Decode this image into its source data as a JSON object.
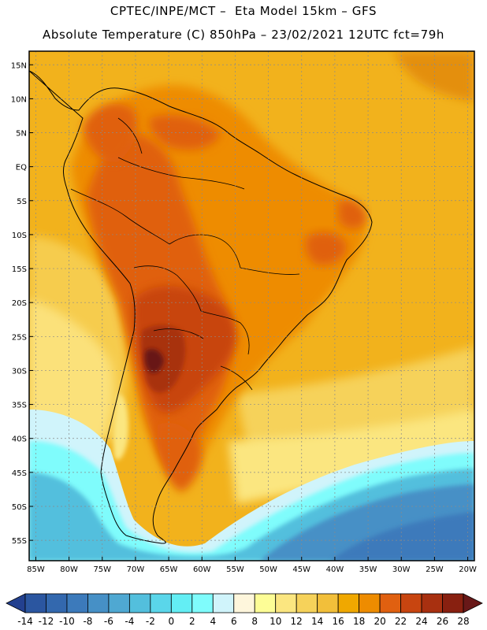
{
  "header": {
    "title_line1": "CPTEC/INPE/MCT –  Eta Model 15km – GFS",
    "title_line2": "Absolute Temperature (C) 850hPa – 23/02/2021 12UTC fct=79h"
  },
  "map": {
    "region": "South America",
    "lon_range": [
      -86,
      -19
    ],
    "lat_range": [
      -58,
      17
    ],
    "lat_ticks": [
      {
        "value": 15,
        "label": "15N"
      },
      {
        "value": 10,
        "label": "10N"
      },
      {
        "value": 5,
        "label": "5N"
      },
      {
        "value": 0,
        "label": "EQ"
      },
      {
        "value": -5,
        "label": "5S"
      },
      {
        "value": -10,
        "label": "10S"
      },
      {
        "value": -15,
        "label": "15S"
      },
      {
        "value": -20,
        "label": "20S"
      },
      {
        "value": -25,
        "label": "25S"
      },
      {
        "value": -30,
        "label": "30S"
      },
      {
        "value": -35,
        "label": "35S"
      },
      {
        "value": -40,
        "label": "40S"
      },
      {
        "value": -45,
        "label": "45S"
      },
      {
        "value": -50,
        "label": "50S"
      },
      {
        "value": -55,
        "label": "55S"
      }
    ],
    "lon_ticks": [
      {
        "value": -85,
        "label": "85W"
      },
      {
        "value": -80,
        "label": "80W"
      },
      {
        "value": -75,
        "label": "75W"
      },
      {
        "value": -70,
        "label": "70W"
      },
      {
        "value": -65,
        "label": "65W"
      },
      {
        "value": -60,
        "label": "60W"
      },
      {
        "value": -55,
        "label": "55W"
      },
      {
        "value": -50,
        "label": "50W"
      },
      {
        "value": -45,
        "label": "45W"
      },
      {
        "value": -40,
        "label": "40W"
      },
      {
        "value": -35,
        "label": "35W"
      },
      {
        "value": -30,
        "label": "30W"
      },
      {
        "value": -25,
        "label": "25W"
      },
      {
        "value": -20,
        "label": "20W"
      }
    ]
  },
  "colorbar": {
    "levels": [
      "-14",
      "-12",
      "-10",
      "-8",
      "-6",
      "-4",
      "-2",
      "0",
      "2",
      "4",
      "6",
      "8",
      "10",
      "12",
      "14",
      "16",
      "18",
      "20",
      "22",
      "24",
      "26",
      "28"
    ],
    "colors": [
      "#23408f",
      "#2b56a0",
      "#3368ae",
      "#3c7abb",
      "#4690c6",
      "#4fa8d2",
      "#53bfdd",
      "#5ad6ea",
      "#63eef4",
      "#7ffcfc",
      "#d0f4fb",
      "#fef6dc",
      "#fdfd96",
      "#fbe680",
      "#f6d25a",
      "#f2bf3a",
      "#f0a800",
      "#ee8c00",
      "#e06010",
      "#c84510",
      "#a83010",
      "#882010",
      "#681818"
    ]
  }
}
